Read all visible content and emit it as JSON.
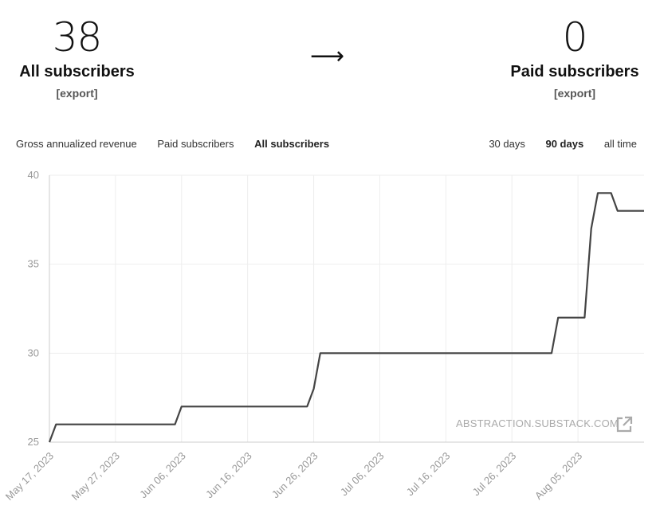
{
  "summary": {
    "left": {
      "number": "38",
      "label": "All subscribers",
      "export": "[export]"
    },
    "arrow": "⟶",
    "right": {
      "number": "0",
      "label": "Paid subscribers",
      "export": "[export]"
    }
  },
  "metric_tabs": [
    {
      "label": "Gross annualized revenue",
      "active": false
    },
    {
      "label": "Paid subscribers",
      "active": false
    },
    {
      "label": "All subscribers",
      "active": true
    }
  ],
  "range_tabs": [
    {
      "label": "30 days",
      "active": false
    },
    {
      "label": "90 days",
      "active": true
    },
    {
      "label": "all time",
      "active": false
    }
  ],
  "watermark": "ABSTRACTION.SUBSTACK.COM",
  "colors": {
    "line": "#444444",
    "grid": "#eeeeee",
    "axis": "#cccccc",
    "tick_text": "#999999"
  },
  "chart_data": {
    "type": "line",
    "title": "",
    "xlabel": "",
    "ylabel": "",
    "x_range": [
      "2023-05-17",
      "2023-08-15"
    ],
    "ylim": [
      25,
      40
    ],
    "yticks": [
      25,
      30,
      35,
      40
    ],
    "xticks": [
      "May 17, 2023",
      "May 27, 2023",
      "Jun 06, 2023",
      "Jun 16, 2023",
      "Jun 26, 2023",
      "Jul 06, 2023",
      "Jul 16, 2023",
      "Jul 26, 2023",
      "Aug 05, 2023"
    ],
    "xtick_dates": [
      "2023-05-17",
      "2023-05-27",
      "2023-06-06",
      "2023-06-16",
      "2023-06-26",
      "2023-07-06",
      "2023-07-16",
      "2023-07-26",
      "2023-08-05"
    ],
    "grid": true,
    "series": [
      {
        "x": [
          "2023-05-17",
          "2023-05-18",
          "2023-06-05",
          "2023-06-06",
          "2023-06-25",
          "2023-06-26",
          "2023-06-27",
          "2023-08-01",
          "2023-08-02",
          "2023-08-06",
          "2023-08-07",
          "2023-08-08",
          "2023-08-09",
          "2023-08-10",
          "2023-08-11",
          "2023-08-12",
          "2023-08-15"
        ],
        "y": [
          25,
          26,
          26,
          27,
          27,
          28,
          30,
          30,
          32,
          32,
          37,
          39,
          39,
          39,
          38,
          38,
          38
        ]
      }
    ]
  }
}
